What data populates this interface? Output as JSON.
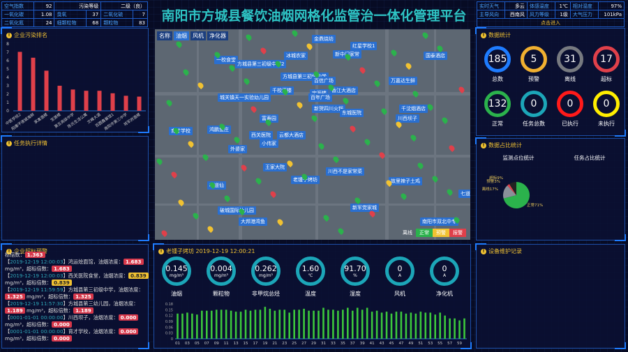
{
  "title": "南阳市方城县餐饮油烟网格化监管治一体化管理平台",
  "air_table": [
    [
      "空气指数",
      "92",
      "污染等级",
      "二级（良）"
    ],
    [
      "一氧化碳",
      "1.08",
      "臭氧",
      "37",
      "二氧化硫",
      "7"
    ],
    [
      "二氧化氮",
      "24",
      "细颗粒物",
      "68",
      "颗粒物",
      "83"
    ]
  ],
  "weather_table": [
    [
      "实时天气",
      "多云",
      "体感温度",
      "1℃",
      "相对湿度",
      "97%"
    ],
    [
      "主导风向",
      "西南风",
      "风力等级",
      "1级",
      "大气压力",
      "101kPa"
    ]
  ],
  "weather_enter": "点击进入",
  "panels": {
    "ranking": "企业污染排名",
    "tasks": "任务执行详情",
    "alarm": "企业超标预警",
    "stats": "数据统计",
    "ratio": "数据占比统计",
    "maint": "设备维护记录"
  },
  "chart_data": [
    {
      "type": "bar",
      "ylim": [
        0,
        8
      ],
      "yticks": [
        "0",
        "1",
        "2",
        "3",
        "4",
        "5",
        "6",
        "7",
        "8"
      ],
      "categories": [
        "中医学校2",
        "阳康不夜城海鲜",
        "家禽酒楼",
        "宝源楼",
        "第五高级中学",
        "陈氏生活公寓",
        "文峰大酒",
        "百圆鑫餐馆1",
        "南阳市第三中学",
        "将军府酒楼"
      ],
      "values": [
        7.05,
        6.35,
        4.8,
        3.0,
        2.55,
        2.4,
        2.4,
        2.1,
        1.8,
        1.7
      ],
      "color": "#e0404a"
    },
    {
      "type": "pie",
      "title": "监测点位统计",
      "slices": [
        {
          "label": "正常",
          "value": 71,
          "color": "#2bb24c"
        },
        {
          "label": "离线",
          "value": 17,
          "color": "#8a9099"
        },
        {
          "label": "预警",
          "value": 3,
          "color": "#e0404a"
        },
        {
          "label": "超标",
          "value": 9,
          "color": "#222222"
        }
      ],
      "label_texts": [
        "正常71%",
        "离线17%",
        "预警3%",
        "超标9%"
      ]
    },
    {
      "type": "bar",
      "ylim": [
        0,
        0.18
      ],
      "yticks": [
        "0",
        "0.03",
        "0.06",
        "0.09",
        "0.12",
        "0.15",
        "0.18"
      ],
      "x": [
        "01",
        "02",
        "03",
        "04",
        "05",
        "06",
        "07",
        "08",
        "09",
        "10",
        "11",
        "12",
        "13",
        "14",
        "15",
        "16",
        "17",
        "18",
        "19",
        "20",
        "21",
        "22",
        "23",
        "24",
        "25",
        "26",
        "27",
        "28",
        "29",
        "30",
        "31",
        "32",
        "33",
        "34",
        "35",
        "36",
        "37",
        "38",
        "39",
        "40",
        "41",
        "42",
        "43",
        "44",
        "45",
        "46",
        "47",
        "48",
        "49",
        "50",
        "51",
        "52",
        "53",
        "54",
        "55",
        "56",
        "57",
        "58",
        "59",
        "00"
      ],
      "values": [
        0.13,
        0.13,
        0.135,
        0.13,
        0.125,
        0.145,
        0.145,
        0.145,
        0.15,
        0.15,
        0.15,
        0.145,
        0.14,
        0.14,
        0.15,
        0.145,
        0.15,
        0.15,
        0.165,
        0.155,
        0.145,
        0.15,
        0.15,
        0.135,
        0.15,
        0.15,
        0.155,
        0.145,
        0.145,
        0.145,
        0.16,
        0.15,
        0.15,
        0.145,
        0.15,
        0.16,
        0.145,
        0.16,
        0.15,
        0.16,
        0.14,
        0.145,
        0.135,
        0.14,
        0.13,
        0.14,
        0.14,
        0.13,
        0.135,
        0.13,
        0.14,
        0.135,
        0.135,
        0.125,
        0.135,
        0.12,
        0.105,
        0.105,
        0.095,
        0.105
      ],
      "color": "#3cc83c"
    }
  ],
  "task_ratio_title": "任务占比统计",
  "stats": [
    {
      "value": "185",
      "label": "总数",
      "color": "#1e7cff"
    },
    {
      "value": "5",
      "label": "预警",
      "color": "#f1b030"
    },
    {
      "value": "31",
      "label": "离线",
      "color": "#777a80"
    },
    {
      "value": "17",
      "label": "超标",
      "color": "#e0404a"
    },
    {
      "value": "132",
      "label": "正常",
      "color": "#2bb24c"
    },
    {
      "value": "0",
      "label": "任务总数",
      "color": "#1ca6b8"
    },
    {
      "value": "0",
      "label": "已执行",
      "color": "#ff1a1a"
    },
    {
      "value": "0",
      "label": "未执行",
      "color": "#ffee00"
    }
  ],
  "map": {
    "tabs": [
      "名称",
      "油烟",
      "风机",
      "净化器"
    ],
    "legend": [
      {
        "label": "离线",
        "color": "transparent"
      },
      {
        "label": "正常",
        "color": "#2bb24c"
      },
      {
        "label": "预警",
        "color": "#f1c232"
      },
      {
        "label": "报警",
        "color": "#e0404a"
      }
    ],
    "labels": [
      "金鼎烧坊",
      "红星学校1",
      "一校食堂",
      "方城县第三初级中学2",
      "冰城农家",
      "方城县第三初级中学",
      "新中门家常",
      "国泰酒店",
      "百信广场",
      "宝源楼",
      "万嘉达生鲜",
      "城关镇天一实验幼儿园",
      "千校酒楼",
      "百年广场",
      "香江大酒店",
      "新贺四川火锅",
      "东城医院",
      "千沈烟酒店",
      "川西坝子",
      "育才学校",
      "鸿鹏鱼庄",
      "富寿园",
      "西关医院",
      "外婆家",
      "小伟家",
      "云都大酒店",
      "王家大院",
      "老锺子烤坊",
      "故里辣子土鸡",
      "川西不是家常菜",
      "味道仙",
      "破城国际幼儿园",
      "新军党家城",
      "大邦港湾鱼",
      "南阳市双北中专",
      "七道"
    ]
  },
  "alarm": {
    "items": [
      {
        "ts": "2019-12-19 12:00:03",
        "text": "鸿运烩面馆，油烟浓度：",
        "v1": "1.683",
        "mid": "mg/m³，超标倍数：",
        "v2": "1.683",
        "warn": false
      },
      {
        "ts": "2019-12-19 12:00:03",
        "text": "西关医院食堂，油烟浓度：",
        "v1": "0.839",
        "mid": "mg/m³，超标倍数：",
        "v2": "0.839",
        "warn": true
      },
      {
        "ts": "2019-12-19 11:59:59",
        "text": "方城县第三初级中学，油烟浓度：",
        "v1": "1.325",
        "mid": "mg/m³，超标倍数：",
        "v2": "1.325",
        "warn": false
      },
      {
        "ts": "2019-12-19 11:57:30",
        "text": "方城县第三幼儿园，油烟浓度：",
        "v1": "1.189",
        "mid": "mg/m³，超标倍数：",
        "v2": "1.189",
        "warn": false
      },
      {
        "ts": "0001-01-01 00:00:00",
        "text": "川西坝子，油烟浓度：",
        "v1": "0.000",
        "mid": "mg/m³，超标倍数：",
        "v2": "0.000",
        "warn": false
      },
      {
        "ts": "0001-01-01 00:00:00",
        "text": "育才学校，油烟浓度：",
        "v1": "0.000",
        "mid": "mg/m³，超标倍数：",
        "v2": "0.000",
        "warn": false
      }
    ],
    "top_partial_label": "标倍数：",
    "top_partial_value": "1.363"
  },
  "device": {
    "title": "老锺子烤坊 2019-12-19 12:00:21",
    "gauges": [
      {
        "value": "0.145",
        "unit": "mg/m³",
        "label": "油烟"
      },
      {
        "value": "0.004",
        "unit": "mg/m³",
        "label": "颗粒物"
      },
      {
        "value": "0.262",
        "unit": "mg/m³",
        "label": "非甲烷总烃"
      },
      {
        "value": "1.60",
        "unit": "℃",
        "label": "温度"
      },
      {
        "value": "91.70",
        "unit": "%",
        "label": "湿度"
      },
      {
        "value": "0",
        "unit": "A",
        "label": "风机"
      },
      {
        "value": "0",
        "unit": "A",
        "label": "净化机"
      }
    ]
  }
}
